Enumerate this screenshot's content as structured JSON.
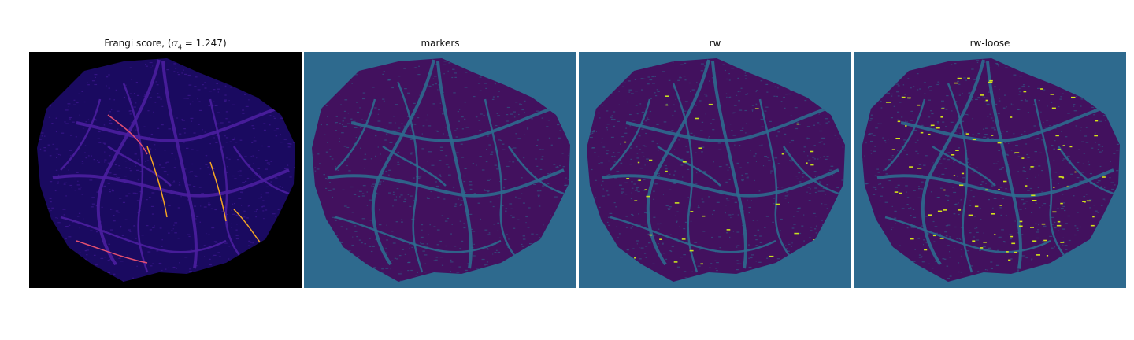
{
  "panels": [
    {
      "title_prefix": "Frangi score, (",
      "sigma_symbol": "σ",
      "sigma_sub": "4",
      "sigma_value": " = 1.247",
      "title_suffix": ")",
      "colors": {
        "background": "#000000",
        "tissue": "#1a0a60",
        "vessel": "#4b1ea0",
        "highlight_hot": "#f5a623",
        "highlight_mid": "#e34f6f"
      }
    },
    {
      "title": "markers",
      "colors": {
        "background": "#2e6a8e",
        "tissue": "#42115e",
        "vessel": "#2e6a8e"
      }
    },
    {
      "title": "rw",
      "colors": {
        "background": "#2e6a8e",
        "tissue": "#42115e",
        "vessel": "#2e6a8e",
        "highlight": "#c8e020"
      }
    },
    {
      "title": "rw-loose",
      "colors": {
        "background": "#2e6a8e",
        "tissue": "#42115e",
        "vessel": "#2e6a8e",
        "highlight": "#d4e21a"
      }
    }
  ]
}
